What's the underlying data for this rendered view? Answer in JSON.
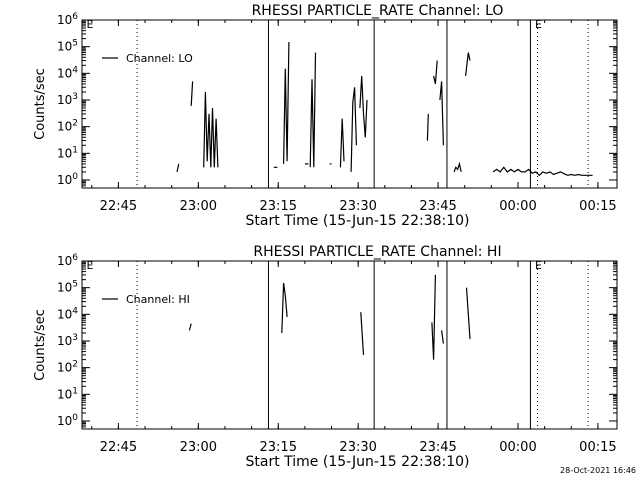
{
  "chart_data": [
    {
      "type": "line",
      "title": "RHESSI PARTICLE_RATE Channel: LO",
      "xlabel": "Start Time (15-Jun-15 22:38:10)",
      "ylabel": "Counts/sec",
      "yscale": "log",
      "ylim": [
        0.5,
        1000000
      ],
      "xlim": [
        "22:38:10",
        "00:18:35"
      ],
      "x_ticks": [
        "22:45",
        "23:00",
        "23:15",
        "23:30",
        "23:45",
        "00:00",
        "00:15"
      ],
      "y_ticks": [
        "10^0",
        "10^1",
        "10^2",
        "10^3",
        "10^4",
        "10^5",
        "10^6"
      ],
      "grid": false,
      "legend": {
        "position": "top-left",
        "entries": [
          "Channel: LO"
        ]
      },
      "vertical_lines": {
        "dotted": [
          "22:48:30",
          "00:03:40",
          "00:13:10"
        ],
        "solid": [
          "23:13:10",
          "23:33:00",
          "23:46:40",
          "00:02:20"
        ],
        "markers": [
          {
            "label": "E",
            "time": "22:38:50"
          },
          {
            "label": "E",
            "time": "00:03:00"
          }
        ]
      },
      "series": [
        {
          "name": "Channel: LO",
          "color": "#000000",
          "segments": [
            [
              [
                "22:56:00",
                2.0
              ],
              [
                "22:56:20",
                4.0
              ]
            ],
            [
              [
                "22:58:40",
                600
              ],
              [
                "22:58:55",
                5000
              ]
            ],
            [
              [
                "23:01:00",
                3
              ],
              [
                "23:01:20",
                2000
              ],
              [
                "23:01:40",
                5
              ],
              [
                "23:02:00",
                300
              ],
              [
                "23:02:20",
                3
              ],
              [
                "23:02:40",
                500
              ],
              [
                "23:03:00",
                3
              ],
              [
                "23:03:20",
                200
              ],
              [
                "23:03:40",
                3
              ]
            ],
            [
              [
                "23:14:10",
                3
              ],
              [
                "23:14:50",
                3
              ]
            ],
            [
              [
                "23:16:00",
                4
              ],
              [
                "23:16:20",
                15000
              ],
              [
                "23:16:40",
                5
              ],
              [
                "23:17:00",
                150000
              ]
            ],
            [
              [
                "23:20:00",
                4
              ],
              [
                "23:20:40",
                4
              ]
            ],
            [
              [
                "23:21:00",
                3
              ],
              [
                "23:21:20",
                6000
              ],
              [
                "23:21:40",
                3
              ],
              [
                "23:22:00",
                60000
              ]
            ],
            [
              [
                "23:24:40",
                4
              ],
              [
                "23:25:00",
                4
              ]
            ],
            [
              [
                "23:26:40",
                3
              ],
              [
                "23:27:00",
                200
              ],
              [
                "23:27:20",
                5
              ]
            ],
            [
              [
                "23:28:40",
                2
              ],
              [
                "23:29:00",
                800
              ],
              [
                "23:29:20",
                3000
              ],
              [
                "23:29:40",
                20
              ]
            ],
            [
              [
                "23:30:20",
                500
              ],
              [
                "23:30:40",
                8000
              ],
              [
                "23:31:00",
                300
              ],
              [
                "23:31:20",
                40
              ],
              [
                "23:31:40",
                1000
              ]
            ],
            [
              [
                "23:43:00",
                30
              ],
              [
                "23:43:10",
                300
              ]
            ],
            [
              [
                "23:44:10",
                8000
              ],
              [
                "23:44:30",
                4000
              ],
              [
                "23:44:50",
                30000
              ]
            ],
            [
              [
                "23:45:20",
                1000
              ],
              [
                "23:45:40",
                5000
              ],
              [
                "23:46:00",
                20
              ]
            ],
            [
              [
                "23:48:00",
                2
              ],
              [
                "23:48:20",
                3
              ],
              [
                "23:48:40",
                2.5
              ],
              [
                "23:49:00",
                4
              ],
              [
                "23:49:20",
                2
              ]
            ],
            [
              [
                "23:50:10",
                8000
              ],
              [
                "23:50:40",
                60000
              ],
              [
                "23:51:00",
                30000
              ]
            ],
            [
              [
                "23:55:20",
                2
              ],
              [
                "23:56:00",
                2.5
              ],
              [
                "23:56:40",
                2
              ],
              [
                "23:57:20",
                3
              ],
              [
                "23:58:00",
                2
              ],
              [
                "23:58:40",
                2.5
              ],
              [
                "23:59:20",
                2
              ],
              [
                "00:00:00",
                2.5
              ],
              [
                "00:00:40",
                2
              ],
              [
                "00:01:20",
                2
              ],
              [
                "00:02:00",
                2.5
              ],
              [
                "00:02:40",
                1.8
              ],
              [
                "00:03:20",
                2
              ],
              [
                "00:04:00",
                1.5
              ],
              [
                "00:04:40",
                2
              ],
              [
                "00:05:20",
                1.8
              ],
              [
                "00:06:00",
                2
              ],
              [
                "00:06:40",
                1.6
              ],
              [
                "00:07:20",
                1.8
              ],
              [
                "00:08:00",
                2
              ],
              [
                "00:08:40",
                1.7
              ],
              [
                "00:09:20",
                1.5
              ],
              [
                "00:10:00",
                1.6
              ],
              [
                "00:10:40",
                1.5
              ],
              [
                "00:11:20",
                1.6
              ],
              [
                "00:12:00",
                1.5
              ],
              [
                "00:13:00",
                1.5
              ],
              [
                "00:14:00",
                1.5
              ]
            ]
          ]
        }
      ]
    },
    {
      "type": "line",
      "title": "RHESSI PARTICLE_RATE Channel: HI",
      "xlabel": "Start Time (15-Jun-15 22:38:10)",
      "ylabel": "Counts/sec",
      "yscale": "log",
      "ylim": [
        0.5,
        1000000
      ],
      "xlim": [
        "22:38:10",
        "00:18:35"
      ],
      "x_ticks": [
        "22:45",
        "23:00",
        "23:15",
        "23:30",
        "23:45",
        "00:00",
        "00:15"
      ],
      "y_ticks": [
        "10^0",
        "10^1",
        "10^2",
        "10^3",
        "10^4",
        "10^5",
        "10^6"
      ],
      "grid": false,
      "legend": {
        "position": "top-left",
        "entries": [
          "Channel: HI"
        ]
      },
      "vertical_lines": {
        "dotted": [
          "22:48:30",
          "00:03:40",
          "00:13:10"
        ],
        "solid": [
          "23:13:10",
          "23:33:00",
          "23:46:40",
          "00:02:20"
        ],
        "markers": [
          {
            "label": "E",
            "time": "22:38:50"
          },
          {
            "label": "E",
            "time": "00:03:00"
          }
        ]
      },
      "series": [
        {
          "name": "Channel: HI",
          "color": "#000000",
          "segments": [
            [
              [
                "22:58:20",
                2500
              ],
              [
                "22:58:40",
                4500
              ]
            ],
            [
              [
                "23:15:40",
                2000
              ],
              [
                "23:16:00",
                150000
              ],
              [
                "23:16:20",
                50000
              ],
              [
                "23:16:40",
                8000
              ]
            ],
            [
              [
                "23:30:30",
                12000
              ],
              [
                "23:31:00",
                300
              ]
            ],
            [
              [
                "23:43:50",
                5000
              ],
              [
                "23:44:10",
                200
              ],
              [
                "23:44:30",
                300000
              ]
            ],
            [
              [
                "23:45:40",
                2500
              ],
              [
                "23:46:00",
                800
              ]
            ],
            [
              [
                "23:50:20",
                100000
              ],
              [
                "23:51:00",
                1200
              ]
            ]
          ]
        }
      ]
    }
  ],
  "footer": {
    "timestamp": "28-Oct-2021 16:46"
  }
}
